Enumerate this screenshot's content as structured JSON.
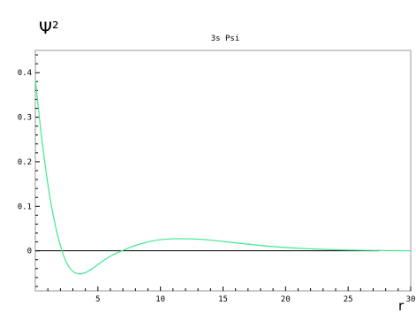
{
  "chart_data": {
    "type": "line",
    "title": "3s Psi",
    "ylabel": "Ψ²",
    "xlabel": "r",
    "xlim": [
      0,
      30
    ],
    "ylim": [
      -0.09,
      0.45
    ],
    "grid": false,
    "x_ticks": [
      5,
      10,
      15,
      20,
      25,
      30
    ],
    "x_tick_labels": [
      "5",
      "10",
      "15",
      "20",
      "25",
      "30"
    ],
    "y_ticks": [
      0,
      0.1,
      0.2,
      0.3,
      0.4
    ],
    "y_tick_labels": [
      "0",
      "0.1",
      "0.2",
      "0.3",
      "0.4"
    ],
    "baseline": {
      "y": 0,
      "x_end": 27.5,
      "color": "#000000"
    },
    "series": [
      {
        "color": "#3fe890",
        "x": [
          0,
          0.5,
          1,
          1.5,
          2,
          2.5,
          3,
          3.5,
          4,
          4.5,
          5,
          5.5,
          6,
          6.5,
          7,
          7.5,
          8,
          8.5,
          9,
          9.5,
          10,
          11,
          12,
          13,
          14,
          15,
          16,
          17,
          18,
          19,
          20,
          21,
          22,
          23,
          24,
          25,
          26,
          27,
          28,
          29,
          30
        ],
        "values": [
          0.385,
          0.255,
          0.15,
          0.07,
          0.012,
          -0.027,
          -0.046,
          -0.052,
          -0.049,
          -0.041,
          -0.031,
          -0.021,
          -0.012,
          -0.005,
          0.001,
          0.007,
          0.012,
          0.016,
          0.02,
          0.023,
          0.025,
          0.027,
          0.027,
          0.026,
          0.024,
          0.021,
          0.018,
          0.015,
          0.012,
          0.0095,
          0.0075,
          0.0058,
          0.0044,
          0.0033,
          0.0024,
          0.0017,
          0.0012,
          0.0008,
          0.0005,
          0.0003,
          0.0002
        ]
      }
    ]
  }
}
